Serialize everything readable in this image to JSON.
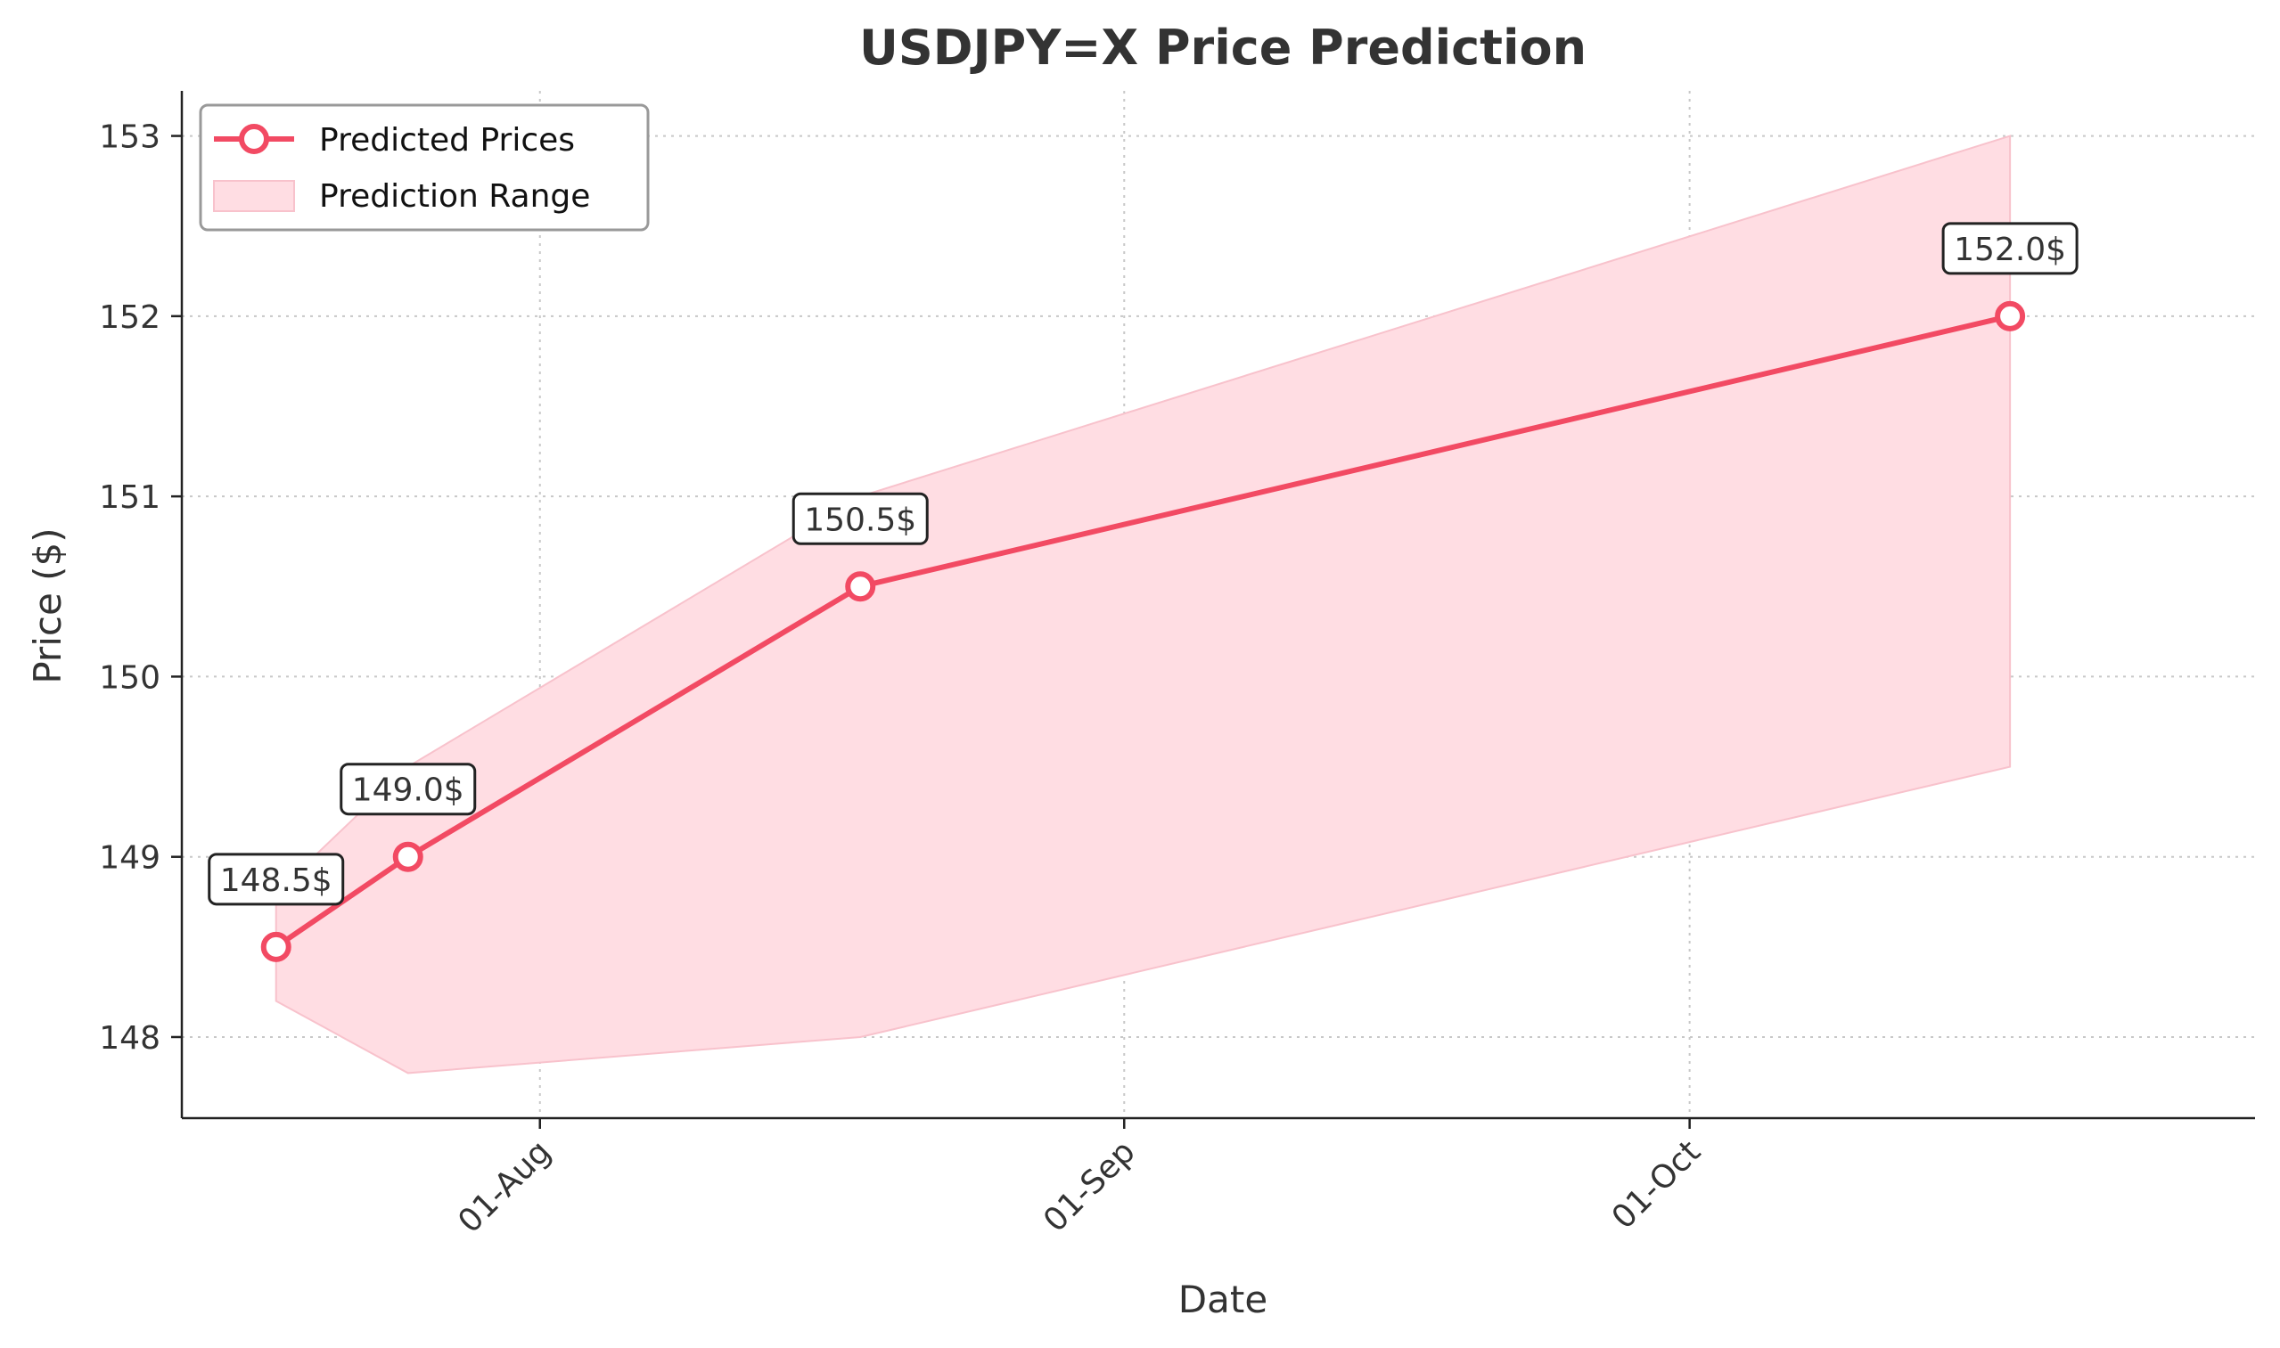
{
  "colors": {
    "line": "#f24a63",
    "band_fill": "#ffdde3",
    "band_edge": "#f8c2cc"
  },
  "chart_data": {
    "type": "line",
    "title": "USDJPY=X Price Prediction",
    "xlabel": "Date",
    "ylabel": "Price ($)",
    "ylim": [
      147.55,
      153.25
    ],
    "yticks": [
      148,
      149,
      150,
      151,
      152,
      153
    ],
    "xlim": [
      "2024-07-13",
      "2024-10-31"
    ],
    "xticks": [
      {
        "date": "2024-08-01",
        "label": "01-Aug"
      },
      {
        "date": "2024-09-01",
        "label": "01-Sep"
      },
      {
        "date": "2024-10-01",
        "label": "01-Oct"
      }
    ],
    "grid": true,
    "legend_position": "top-left",
    "series": [
      {
        "name": "Predicted Prices",
        "kind": "line",
        "x": [
          "2024-07-18",
          "2024-07-25",
          "2024-08-18",
          "2024-10-18"
        ],
        "values": [
          148.5,
          149.0,
          150.5,
          152.0
        ],
        "labels": [
          "148.5$",
          "149.0$",
          "150.5$",
          "152.0$"
        ]
      },
      {
        "name": "Prediction Range",
        "kind": "band",
        "x": [
          "2024-07-18",
          "2024-07-25",
          "2024-08-18",
          "2024-10-18"
        ],
        "upper": [
          148.8,
          149.5,
          151.0,
          153.0
        ],
        "lower": [
          148.2,
          147.8,
          148.0,
          149.5
        ]
      }
    ]
  }
}
